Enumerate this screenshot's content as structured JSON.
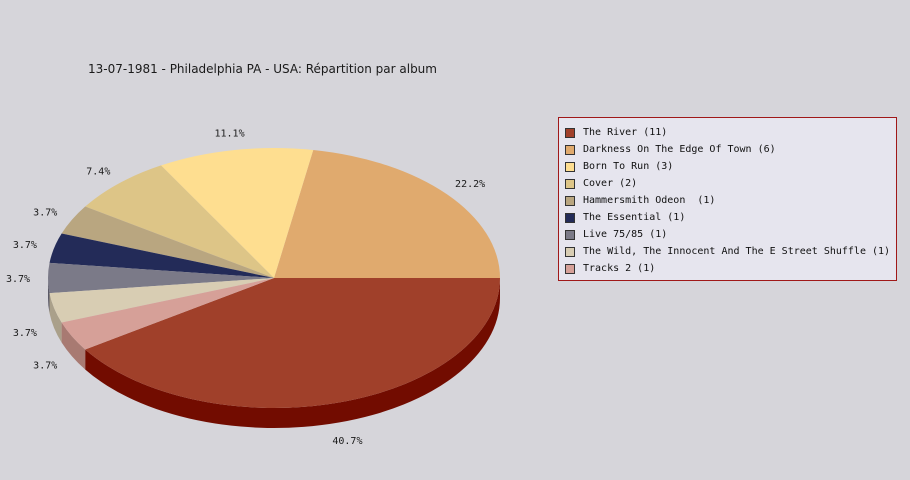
{
  "title": "13-07-1981 - Philadelphia PA - USA:  Répartition par album",
  "chart_data": {
    "type": "pie",
    "title": "13-07-1981 - Philadelphia PA - USA:  Répartition par album",
    "legend_position": "right",
    "slices": [
      {
        "label": "The River (11)",
        "value": 11,
        "percent_label": "40.7%",
        "color": "#a0402a",
        "side_color": "#720c00"
      },
      {
        "label": "Darkness On The Edge Of Town (6)",
        "value": 6,
        "percent_label": "22.2%",
        "color": "#e0aa6e",
        "side_color": "#b0864e"
      },
      {
        "label": "Born To Run (3)",
        "value": 3,
        "percent_label": "11.1%",
        "color": "#fede90",
        "side_color": "#c8ae6a"
      },
      {
        "label": "Cover (2)",
        "value": 2,
        "percent_label": "7.4%",
        "color": "#ddc587",
        "side_color": "#ad9963"
      },
      {
        "label": "Hammersmith Odeon  (1)",
        "value": 1,
        "percent_label": "3.7%",
        "color": "#b9a680",
        "side_color": "#8e7f60"
      },
      {
        "label": "The Essential (1)",
        "value": 1,
        "percent_label": "3.7%",
        "color": "#232b58",
        "side_color": "#141a38"
      },
      {
        "label": "Live 75/85 (1)",
        "value": 1,
        "percent_label": "3.7%",
        "color": "#7b7a88",
        "side_color": "#5a5966"
      },
      {
        "label": "The Wild, The Innocent And The E Street Shuffle (1)",
        "value": 1,
        "percent_label": "3.7%",
        "color": "#d8cdb3",
        "side_color": "#aaa08a"
      },
      {
        "label": "Tracks 2 (1)",
        "value": 1,
        "percent_label": "3.7%",
        "color": "#d6a098",
        "side_color": "#a87a72"
      }
    ]
  }
}
